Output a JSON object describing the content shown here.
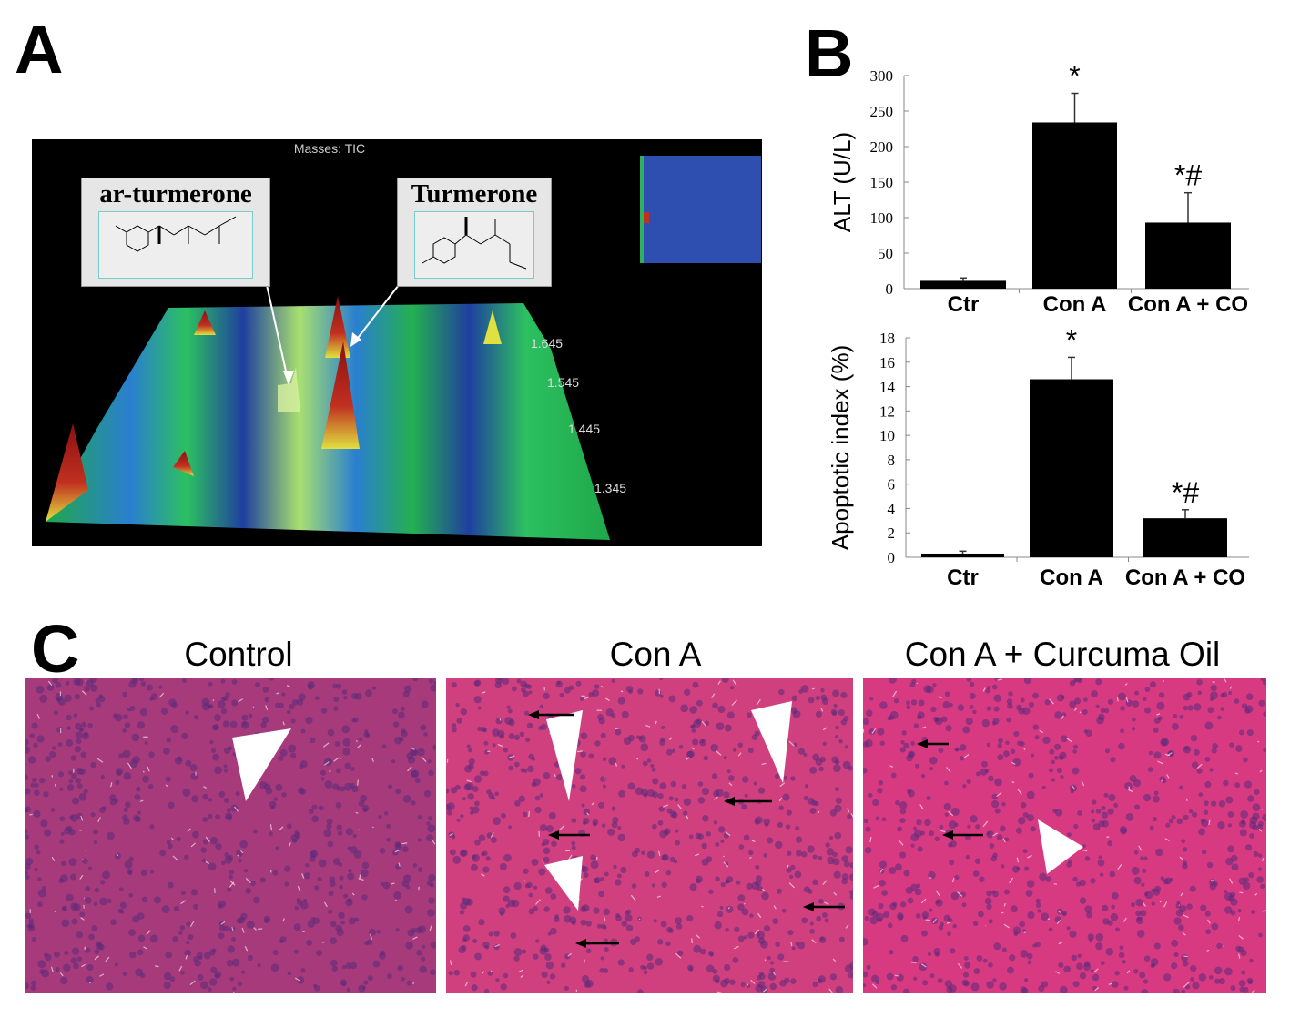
{
  "panels": {
    "a": "A",
    "b": "B",
    "c": "C"
  },
  "panel_a": {
    "header": "Masses: TIC",
    "compounds": [
      {
        "name": "ar-turmerone"
      },
      {
        "name": "Turmerone"
      }
    ],
    "depth_ticks": [
      "1.645",
      "1.545",
      "1.445",
      "1.345"
    ],
    "colors": {
      "background": "#000000",
      "surface_low": "#1fa84a",
      "surface_mid": "#2a7fd0",
      "peak": "#8b1010",
      "inset": "#2e4fb0"
    }
  },
  "chart_data": [
    {
      "type": "bar",
      "title": "",
      "xlabel": "",
      "ylabel": "ALT (U/L)",
      "categories": [
        "Ctr",
        "Con A",
        "Con A + CO"
      ],
      "values": [
        11,
        234,
        93
      ],
      "errors": [
        4,
        41,
        42
      ],
      "annotations": [
        "",
        "*",
        "*#"
      ],
      "ylim": [
        0,
        300
      ],
      "yticks": [
        "0",
        "50",
        "100",
        "150",
        "200",
        "250",
        "300"
      ],
      "grid": false,
      "color": "#000000"
    },
    {
      "type": "bar",
      "title": "",
      "xlabel": "",
      "ylabel": "Apoptotic index (%)",
      "categories": [
        "Ctr",
        "Con A",
        "Con A + CO"
      ],
      "values": [
        0.3,
        14.6,
        3.2
      ],
      "errors": [
        0.2,
        1.8,
        0.7
      ],
      "annotations": [
        "",
        "*",
        "*#"
      ],
      "ylim": [
        0,
        18
      ],
      "yticks": [
        "0",
        "2",
        "4",
        "6",
        "8",
        "10",
        "12",
        "14",
        "16",
        "18"
      ],
      "grid": false,
      "color": "#000000"
    }
  ],
  "panel_c": {
    "images": [
      {
        "title": "Control",
        "arrows": 0
      },
      {
        "title": "Con A",
        "arrows": 5
      },
      {
        "title": "Con A + Curcuma Oil",
        "arrows": 2
      }
    ],
    "colors": {
      "tissue": "#c8327a",
      "nuclei": "#5a2a7a",
      "lumen": "#ffffff"
    }
  }
}
